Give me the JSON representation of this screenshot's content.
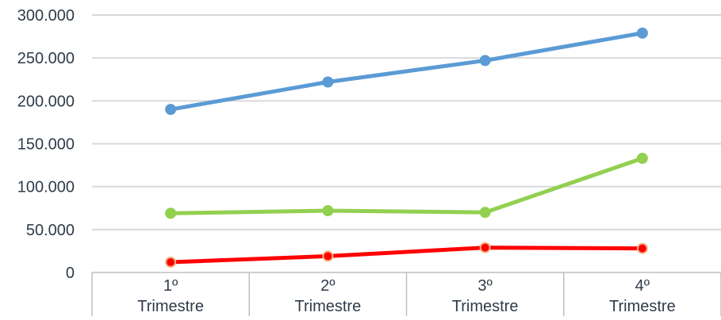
{
  "chart_data": {
    "type": "line",
    "title": "",
    "xlabel": "",
    "ylabel": "",
    "categories": [
      [
        "1º",
        "Trimestre"
      ],
      [
        "2º",
        "Trimestre"
      ],
      [
        "3º",
        "Trimestre"
      ],
      [
        "4º",
        "Trimestre"
      ]
    ],
    "y_ticks": [
      "0",
      "50.000",
      "100.000",
      "150.000",
      "200.000",
      "250.000",
      "300.000"
    ],
    "ylim": [
      0,
      300000
    ],
    "grid": true,
    "legend": "none",
    "series": [
      {
        "color": "#5b9bd5",
        "values": [
          190000,
          222000,
          247000,
          279000
        ]
      },
      {
        "color": "#92d050",
        "values": [
          69000,
          72000,
          70000,
          133000
        ]
      },
      {
        "color": "#ff0000",
        "marker_fill": "#ff0000",
        "marker_stroke": "#f4b183",
        "values": [
          12000,
          19000,
          29000,
          28000
        ]
      }
    ]
  }
}
